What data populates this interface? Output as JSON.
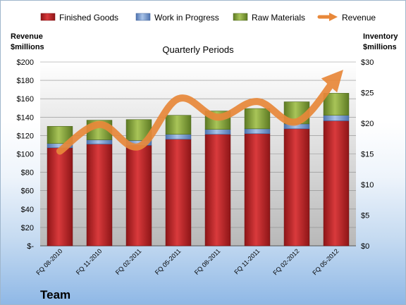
{
  "chart_data": {
    "type": "bar",
    "title": "Quarterly Periods",
    "footer": "Team",
    "y_left_label": [
      "Revenue",
      "$millions"
    ],
    "y_right_label": [
      "Inventory",
      "$millions"
    ],
    "y_left_ticks": [
      "$-",
      "$20",
      "$40",
      "$60",
      "$80",
      "$100",
      "$120",
      "$140",
      "$160",
      "$180",
      "$200"
    ],
    "y_right_ticks": [
      "$0",
      "$5",
      "$10",
      "$15",
      "$20",
      "$25",
      "$30"
    ],
    "ylim_left": [
      0,
      200
    ],
    "ylim_right": [
      0,
      30
    ],
    "grid": true,
    "legend_position": "top",
    "categories": [
      "FQ 08-2010",
      "FQ 11-2010",
      "FQ 02-2011",
      "FQ 05-2011",
      "FQ 08-2011",
      "FQ 11-2011",
      "FQ 02-2012",
      "FQ 05-2012"
    ],
    "series": [
      {
        "name": "Finished Goods",
        "type": "bar",
        "axis": "right",
        "color": "#c0282b",
        "values": [
          16.0,
          16.6,
          16.4,
          17.4,
          18.2,
          18.3,
          19.1,
          20.4
        ]
      },
      {
        "name": "Work in Progress",
        "type": "bar",
        "axis": "right",
        "color": "#7ea1d4",
        "values": [
          0.7,
          0.7,
          0.8,
          0.8,
          0.8,
          0.8,
          0.8,
          0.9
        ]
      },
      {
        "name": "Raw Materials",
        "type": "bar",
        "axis": "right",
        "color": "#8aa83d",
        "values": [
          2.8,
          3.2,
          3.4,
          3.1,
          3.0,
          3.3,
          3.6,
          3.6
        ]
      },
      {
        "name": "Revenue",
        "type": "line",
        "axis": "left",
        "color": "#e8883a",
        "values": [
          103,
          132,
          108,
          160,
          140,
          157,
          135,
          183
        ]
      }
    ]
  }
}
